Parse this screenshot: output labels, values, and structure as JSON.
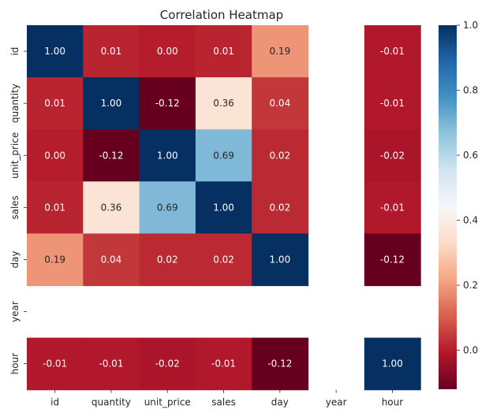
{
  "chart_data": {
    "type": "heatmap",
    "title": "Correlation Heatmap",
    "xlabel": "",
    "ylabel": "",
    "x_categories": [
      "id",
      "quantity",
      "unit_price",
      "sales",
      "day",
      "year",
      "hour"
    ],
    "y_categories": [
      "id",
      "quantity",
      "unit_price",
      "sales",
      "day",
      "year",
      "hour"
    ],
    "values": [
      [
        1.0,
        0.01,
        0.0,
        0.01,
        0.19,
        null,
        -0.01
      ],
      [
        0.01,
        1.0,
        -0.12,
        0.36,
        0.04,
        null,
        -0.01
      ],
      [
        0.0,
        -0.12,
        1.0,
        0.69,
        0.02,
        null,
        -0.02
      ],
      [
        0.01,
        0.36,
        0.69,
        1.0,
        0.02,
        null,
        -0.01
      ],
      [
        0.19,
        0.04,
        0.02,
        0.02,
        1.0,
        null,
        -0.12
      ],
      [
        null,
        null,
        null,
        null,
        null,
        null,
        null
      ],
      [
        -0.01,
        -0.01,
        -0.02,
        -0.01,
        -0.12,
        null,
        1.0
      ]
    ],
    "colormap": "RdBu",
    "colormap_stops": [
      "#67001f",
      "#b2182b",
      "#d6604d",
      "#f4a582",
      "#fddbc7",
      "#f7f7f7",
      "#d1e5f0",
      "#92c5de",
      "#4393c3",
      "#2166ac",
      "#053061"
    ],
    "vmin": -0.12,
    "vmax": 1.0,
    "colorbar_ticks": [
      0.0,
      0.2,
      0.4,
      0.6,
      0.8,
      1.0
    ],
    "colorbar_tick_labels": [
      "0.0",
      "0.2",
      "0.4",
      "0.6",
      "0.8",
      "1.0"
    ],
    "grid": false,
    "annotations": true
  }
}
